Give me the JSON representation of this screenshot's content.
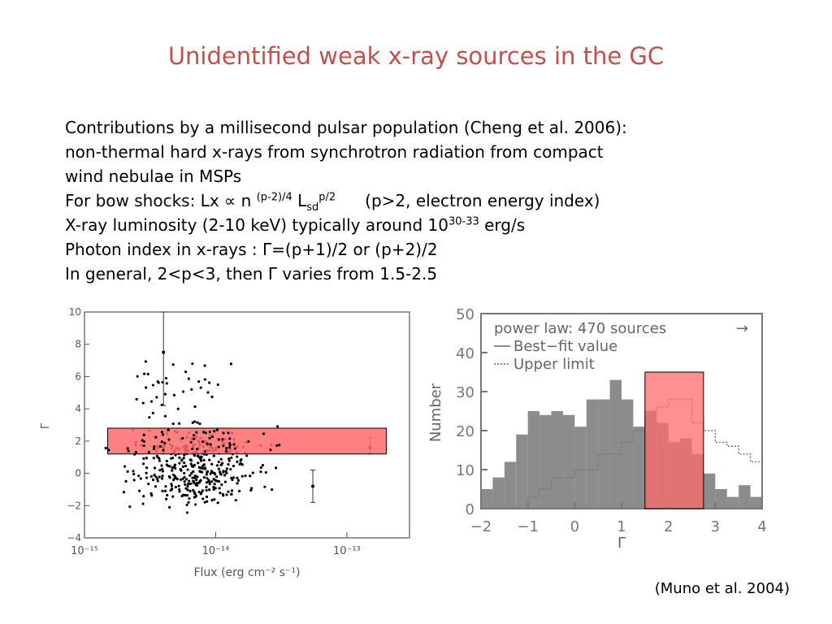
{
  "title": "Unidentified weak x-ray sources in the GC",
  "lines": {
    "l1": "Contributions by a millisecond pulsar population (Cheng et al. 2006):",
    "l2": "non-thermal hard x-rays from synchrotron radiation from compact",
    "l3": "wind nebulae in MSPs",
    "l4_a": "For bow shocks: Lx ∝ n ",
    "l4_sup1": "(p-2)/4",
    "l4_b": " L",
    "l4_sub": "sd",
    "l4_sup2": "p/2",
    "l4_c": "(p>2, electron energy index)",
    "l5_a": "X-ray luminosity (2-10 keV) typically around 10",
    "l5_sup": "30-33",
    "l5_b": " erg/s",
    "l6": "Photon index in x-rays : Γ=(p+1)/2  or  (p+2)/2",
    "l7": "In general, 2<p<3,  then Γ varies from 1.5-2.5"
  },
  "citation": "(Muno et al. 2004)",
  "colors": {
    "title": "#c0504d",
    "highlight_fill": "#ff6b6b",
    "highlight_stroke": "#8b0000",
    "hist_gray": "#8c8c8c"
  },
  "chart_data": [
    {
      "type": "scatter",
      "xlabel": "Flux (erg cm⁻² s⁻¹)",
      "ylabel": "Γ",
      "xscale": "log",
      "xlim": [
        1e-15,
        3e-13
      ],
      "ylim": [
        -4,
        10
      ],
      "x_ticks": [
        "10⁻¹⁵",
        "10⁻¹⁴",
        "10⁻¹³"
      ],
      "y_ticks": [
        "10",
        "8",
        "6",
        "4",
        "2",
        "0",
        "−2",
        "−4"
      ],
      "highlight_band": {
        "y_range": [
          1.2,
          2.8
        ],
        "x_range": [
          1.5e-15,
          2e-13
        ]
      },
      "points_description": "~470 sources concentrated at Γ≈-2 to 3 around flux 5e-15 to 2e-14",
      "error_bars": [
        {
          "x": 4e-15,
          "y": 7.5,
          "ylo": 4.2,
          "yhi": 10
        },
        {
          "x": 5.5e-14,
          "y": -0.8,
          "ylo": -1.8,
          "yhi": 0.2
        },
        {
          "x": 1.5e-13,
          "y": 1.6,
          "ylo": 1.2,
          "yhi": 2.2
        }
      ]
    },
    {
      "type": "bar",
      "xlabel": "Γ",
      "ylabel": "Number",
      "xlim": [
        -2,
        4
      ],
      "ylim": [
        0,
        50
      ],
      "x_ticks": [
        "−2",
        "−1",
        "0",
        "1",
        "2",
        "3",
        "4"
      ],
      "y_ticks": [
        "50",
        "40",
        "30",
        "20",
        "10",
        "0"
      ],
      "legend": {
        "title": "power law: 470 sources",
        "arrow": "→",
        "entries": [
          "Best−fit value",
          "Upper limit"
        ]
      },
      "bin_width": 0.25,
      "bin_start": -2,
      "best_fit": [
        5,
        8,
        12,
        19,
        25,
        24,
        25,
        24,
        21,
        28,
        28,
        33,
        28,
        21,
        25,
        22,
        17,
        18,
        14,
        9,
        5,
        3,
        6,
        3
      ],
      "upper_limit": [
        0,
        0,
        0,
        0,
        3,
        5,
        8,
        8,
        10,
        10,
        14,
        14,
        17,
        20,
        25,
        26,
        28,
        28,
        22,
        20,
        17,
        16,
        14,
        12
      ],
      "highlight_band": {
        "x_range": [
          1.5,
          2.75
        ],
        "y_range": [
          0,
          35
        ]
      }
    }
  ]
}
